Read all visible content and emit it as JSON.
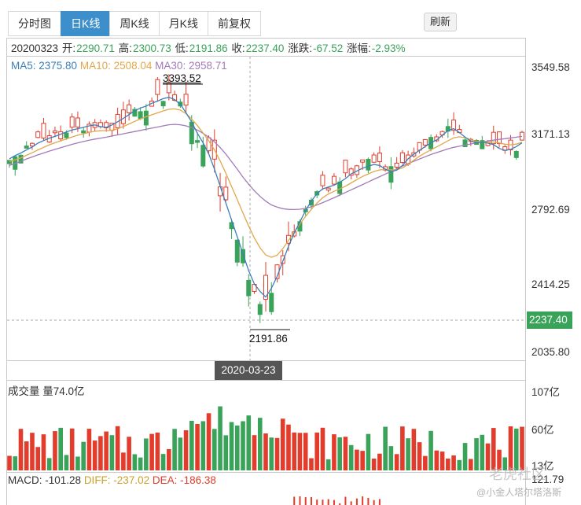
{
  "tabs": [
    {
      "label": "分时图",
      "active": false
    },
    {
      "label": "日K线",
      "active": true
    },
    {
      "label": "周K线",
      "active": false
    },
    {
      "label": "月K线",
      "active": false
    },
    {
      "label": "前复权",
      "active": false
    }
  ],
  "refresh_label": "刷新",
  "info": {
    "date": "20200323",
    "open_label": "开:",
    "open": "2290.71",
    "high_label": "高:",
    "high": "2300.73",
    "low_label": "低:",
    "low": "2191.86",
    "close_label": "收:",
    "close": "2237.40",
    "change_label": "涨跌:",
    "change": "-67.52",
    "pct_label": "涨幅:",
    "pct": "-2.93%"
  },
  "ma": {
    "ma5": "MA5: 2375.80",
    "ma10": "MA10: 2508.04",
    "ma30": "MA30: 2958.71"
  },
  "price_axis": [
    "3549.58",
    "3171.13",
    "2792.69",
    "2414.25",
    "2035.80"
  ],
  "last_price": "2237.40",
  "high_marker": "3393.52",
  "low_marker": "2191.86",
  "crosshair_date": "2020-03-23",
  "volume": {
    "label": "成交量 量74.0亿",
    "axis": [
      "107亿",
      "60亿",
      "13亿"
    ]
  },
  "macd": {
    "macd": "MACD: -101.28",
    "diff": "DIFF: -237.02",
    "dea": "DEA: -186.38",
    "axis_top": "121.79"
  },
  "watermark": "老虎社区",
  "watermark_sub": "@小金人塔尔塔洛斯",
  "colors": {
    "up": "#e23c2c",
    "down": "#3aa35a",
    "ma5": "#3b7fb8",
    "ma10": "#e0a84a",
    "ma30": "#a27bb8",
    "accent": "#3d8fcc"
  },
  "chart_data": {
    "type": "candlestick",
    "price_range": [
      2035.8,
      3549.58
    ],
    "volume_range_yi": [
      13,
      107
    ],
    "ma5_series": [
      3065,
      3082,
      3096,
      3112,
      3128,
      3148,
      3162,
      3175,
      3184,
      3196,
      3208,
      3218,
      3225,
      3232,
      3240,
      3245,
      3236,
      3232,
      3245,
      3262,
      3280,
      3300,
      3320,
      3335,
      3345,
      3360,
      3372,
      3385,
      3392,
      3380,
      3355,
      3310,
      3260,
      3200,
      3150,
      3090,
      3010,
      2920,
      2830,
      2740,
      2650,
      2560,
      2470,
      2400,
      2360,
      2330,
      2376,
      2440,
      2520,
      2600,
      2670,
      2730,
      2790,
      2840,
      2880,
      2905,
      2915,
      2925,
      2940,
      2960,
      2985,
      3000,
      3015,
      3025,
      3035,
      3030,
      3010,
      2995,
      3005,
      3030,
      3065,
      3090,
      3110,
      3130,
      3150,
      3165,
      3190,
      3215,
      3225,
      3205,
      3180,
      3160,
      3150,
      3155,
      3148,
      3140,
      3120,
      3110,
      3115,
      3130,
      3150
    ],
    "ma30_series": [
      3030,
      3040,
      3052,
      3064,
      3075,
      3086,
      3096,
      3106,
      3115,
      3124,
      3133,
      3142,
      3150,
      3157,
      3164,
      3170,
      3175,
      3180,
      3186,
      3192,
      3198,
      3204,
      3210,
      3216,
      3222,
      3228,
      3234,
      3240,
      3246,
      3248,
      3246,
      3240,
      3230,
      3218,
      3200,
      3180,
      3155,
      3125,
      3090,
      3050,
      3010,
      2968,
      2930,
      2895,
      2865,
      2840,
      2820,
      2808,
      2800,
      2796,
      2795,
      2797,
      2802,
      2810,
      2820,
      2832,
      2845,
      2858,
      2872,
      2886,
      2900,
      2914,
      2928,
      2942,
      2956,
      2970,
      2984,
      2998,
      3012,
      3026,
      3040,
      3052,
      3064,
      3076,
      3088,
      3098,
      3108,
      3118,
      3126,
      3132,
      3138,
      3144,
      3150,
      3155,
      3160,
      3164,
      3168,
      3172,
      3176,
      3180,
      3184
    ]
  }
}
